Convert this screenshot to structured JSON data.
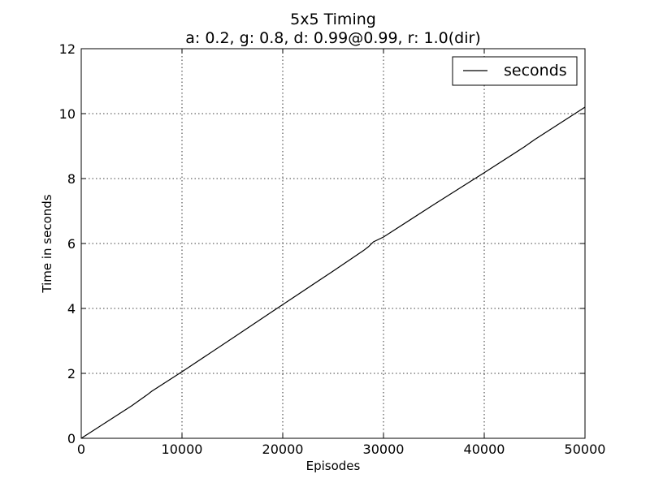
{
  "chart_data": {
    "type": "line",
    "title": "5x5 Timing",
    "subtitle": "a: 0.2, g: 0.8, d: 0.99@0.99, r: 1.0(dir)",
    "xlabel": "Episodes",
    "ylabel": "Time in seconds",
    "xlim": [
      0,
      50000
    ],
    "ylim": [
      0,
      12
    ],
    "xticks": [
      0,
      10000,
      20000,
      30000,
      40000,
      50000
    ],
    "yticks": [
      0,
      2,
      4,
      6,
      8,
      10,
      12
    ],
    "xtick_labels": [
      "0",
      "10000",
      "20000",
      "30000",
      "40000",
      "50000"
    ],
    "ytick_labels": [
      "0",
      "2",
      "4",
      "6",
      "8",
      "10",
      "12"
    ],
    "grid": true,
    "legend_position": "top-right",
    "series": [
      {
        "name": "seconds",
        "color": "#000000",
        "x": [
          0,
          2500,
          5000,
          6500,
          7000,
          10000,
          15000,
          20000,
          25000,
          28000,
          28500,
          29000,
          30000,
          35000,
          40000,
          44000,
          45000,
          50000
        ],
        "y": [
          0.0,
          0.5,
          1.0,
          1.33,
          1.45,
          2.05,
          3.08,
          4.12,
          5.15,
          5.78,
          5.9,
          6.05,
          6.2,
          7.2,
          8.18,
          8.98,
          9.2,
          10.2
        ]
      }
    ]
  }
}
